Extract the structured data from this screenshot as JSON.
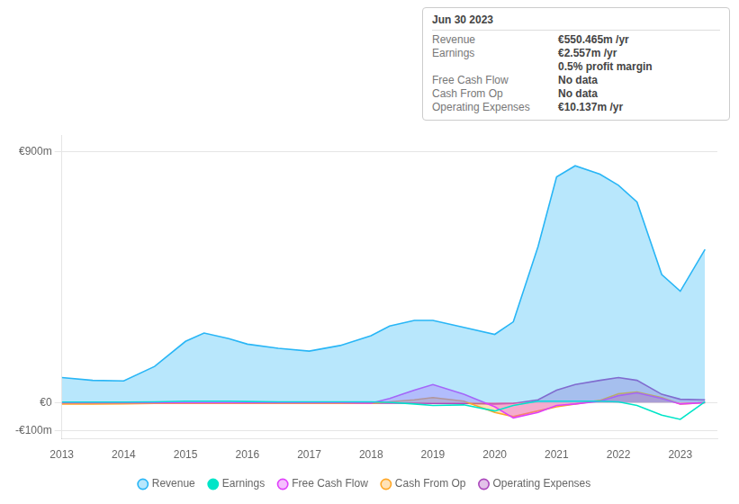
{
  "chart_data": {
    "type": "line",
    "x": [
      2013,
      2013.5,
      2014,
      2014.5,
      2015,
      2015.3,
      2015.7,
      2016,
      2016.5,
      2017,
      2017.5,
      2018,
      2018.3,
      2018.7,
      2019,
      2019.5,
      2020,
      2020.3,
      2020.7,
      2021,
      2021.3,
      2021.7,
      2022,
      2022.3,
      2022.7,
      2023,
      2023.4
    ],
    "series": [
      {
        "name": "Revenue",
        "color": "#29b6f6",
        "type": "area",
        "values": [
          90,
          80,
          78,
          130,
          220,
          250,
          230,
          210,
          195,
          185,
          205,
          240,
          275,
          295,
          295,
          270,
          245,
          290,
          560,
          810,
          850,
          820,
          780,
          720,
          460,
          400,
          550
        ]
      },
      {
        "name": "Earnings",
        "color": "#00e5c8",
        "type": "line",
        "values": [
          2,
          2,
          2,
          3,
          5,
          5,
          5,
          4,
          3,
          3,
          3,
          3,
          1,
          -5,
          -10,
          -8,
          -30,
          -10,
          5,
          5,
          5,
          5,
          3,
          -10,
          -45,
          -60,
          3
        ]
      },
      {
        "name": "Free Cash Flow",
        "color": "#e040fb",
        "type": "area",
        "values": [
          0,
          0,
          0,
          0,
          0,
          0,
          0,
          0,
          0,
          0,
          0,
          -2,
          15,
          45,
          65,
          30,
          -15,
          -55,
          -35,
          -10,
          -5,
          5,
          25,
          35,
          15,
          -5,
          0
        ]
      },
      {
        "name": "Cash From Op",
        "color": "#ffa726",
        "type": "area",
        "values": [
          -5,
          -5,
          -4,
          -3,
          -3,
          -3,
          -3,
          -3,
          -3,
          -3,
          -3,
          -3,
          3,
          10,
          18,
          5,
          -35,
          -50,
          -30,
          -15,
          -5,
          8,
          32,
          38,
          18,
          -5,
          0
        ]
      },
      {
        "name": "Operating Expenses",
        "color": "#ab47bc",
        "type": "area",
        "values": [
          -2,
          -2,
          -2,
          -2,
          -2,
          -2,
          -2,
          -2,
          -2,
          -2,
          -2,
          -2,
          -2,
          -2,
          -3,
          -3,
          -5,
          -3,
          10,
          45,
          65,
          80,
          90,
          80,
          30,
          12,
          10
        ]
      }
    ],
    "xlim": [
      2013,
      2023.6
    ],
    "xticks": [
      2013,
      2014,
      2015,
      2016,
      2017,
      2018,
      2019,
      2020,
      2021,
      2022,
      2023
    ],
    "ylim": [
      -130,
      960
    ],
    "yticks": [
      {
        "value": -100,
        "label": "-€100m"
      },
      {
        "value": 0,
        "label": "€0"
      },
      {
        "value": 900,
        "label": "€900m"
      }
    ],
    "grid": "y",
    "legend": "bottom",
    "annotations": [
      [
        "Jun 30 2023"
      ],
      [
        "Revenue",
        "€550.465m /yr"
      ],
      [
        "Earnings",
        "€2.557m /yr"
      ],
      [
        "0.5% profit margin"
      ],
      [
        "Free Cash Flow",
        "No data"
      ],
      [
        "Cash From Op",
        "No data"
      ],
      [
        "Operating Expenses",
        "€10.137m /yr"
      ]
    ]
  }
}
